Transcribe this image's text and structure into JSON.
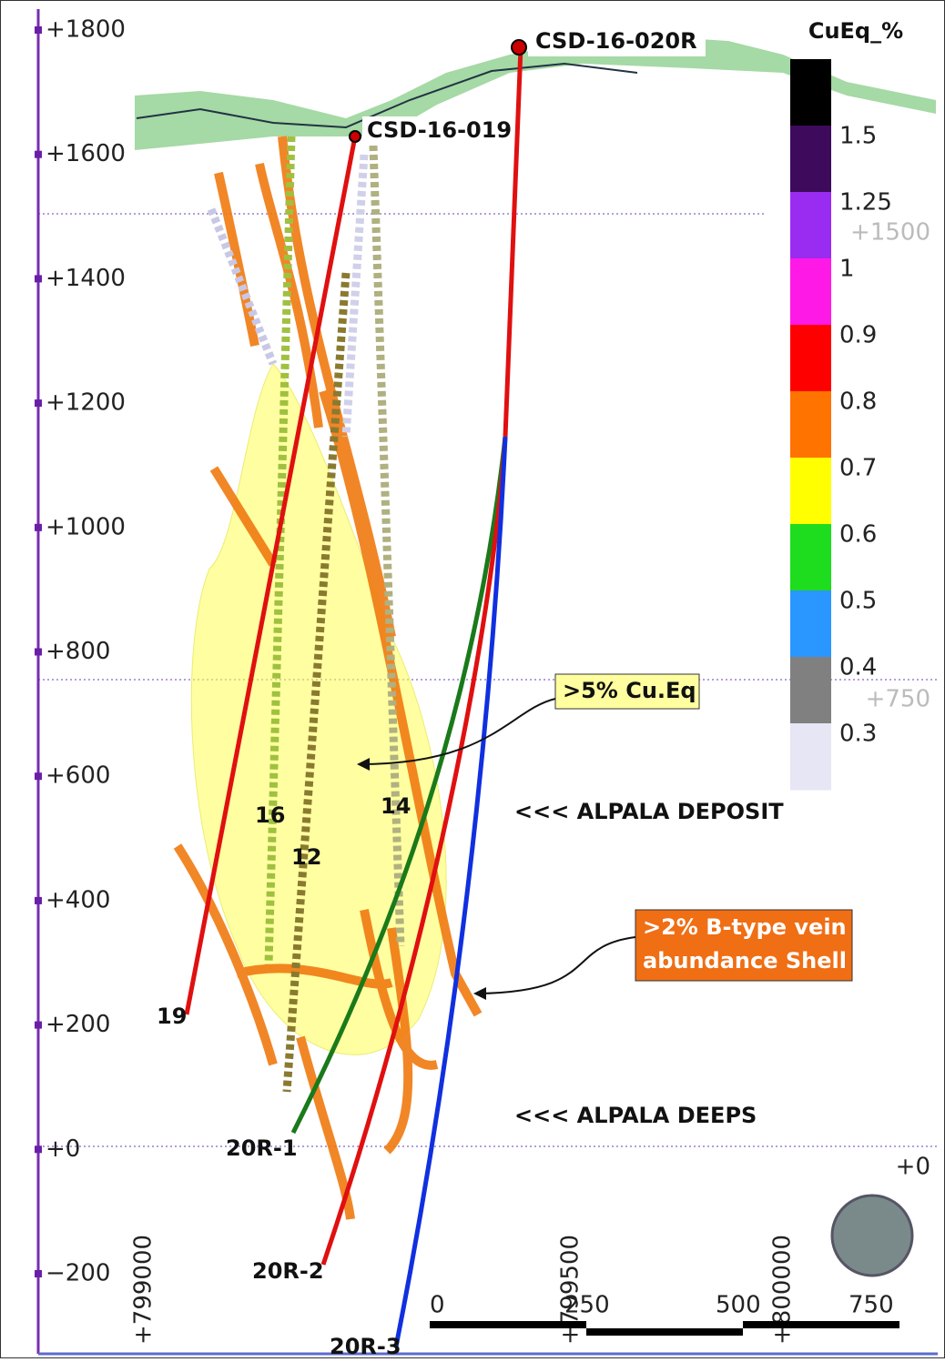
{
  "axis": {
    "ticks": [
      "+1800",
      "+1600",
      "+1400",
      "+1200",
      "+1000",
      "+800",
      "+600",
      "+400",
      "+200",
      "+0",
      "−200"
    ]
  },
  "elevation_marks": [
    "+1500",
    "+750",
    "+0"
  ],
  "eastings": [
    "+799000",
    "+799500",
    "+800000"
  ],
  "legend": {
    "title": "CuEq_%",
    "colors": [
      "#000000",
      "#3d0a5c",
      "#9a2bf0",
      "#ff19e6",
      "#ff0000",
      "#ff7300",
      "#ffff00",
      "#1edc1e",
      "#2a96ff",
      "#808080",
      "#e6e6f5"
    ],
    "labels": [
      "1.5",
      "1.25",
      "1",
      "0.9",
      "0.8",
      "0.7",
      "0.6",
      "0.5",
      "0.4",
      "0.3"
    ]
  },
  "collars": [
    "CSD-16-020R",
    "CSD-16-019"
  ],
  "annotations": {
    "high_grade": ">5% Cu.Eq",
    "deposit": "<<< ALPALA DEPOSIT",
    "shell_line1": ">2% B-type vein",
    "shell_line2": "abundance Shell",
    "deeps": "<<< ALPALA DEEPS"
  },
  "hole_labels": [
    "16",
    "12",
    "14",
    "19",
    "20R-1",
    "20R-2",
    "20R-3"
  ],
  "scale_bar": [
    "0",
    "250",
    "500",
    "750"
  ]
}
